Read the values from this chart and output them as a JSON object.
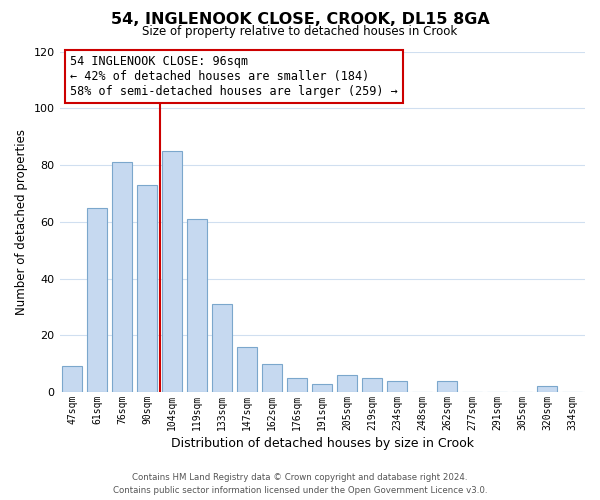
{
  "title": "54, INGLENOOK CLOSE, CROOK, DL15 8GA",
  "subtitle": "Size of property relative to detached houses in Crook",
  "xlabel": "Distribution of detached houses by size in Crook",
  "ylabel": "Number of detached properties",
  "categories": [
    "47sqm",
    "61sqm",
    "76sqm",
    "90sqm",
    "104sqm",
    "119sqm",
    "133sqm",
    "147sqm",
    "162sqm",
    "176sqm",
    "191sqm",
    "205sqm",
    "219sqm",
    "234sqm",
    "248sqm",
    "262sqm",
    "277sqm",
    "291sqm",
    "305sqm",
    "320sqm",
    "334sqm"
  ],
  "values": [
    9,
    65,
    81,
    73,
    85,
    61,
    31,
    16,
    10,
    5,
    3,
    6,
    5,
    4,
    0,
    4,
    0,
    0,
    0,
    2,
    0
  ],
  "bar_color": "#c6d9f0",
  "bar_edge_color": "#7ba7cc",
  "vline_x": 3.5,
  "vline_color": "#cc0000",
  "ylim": [
    0,
    120
  ],
  "yticks": [
    0,
    20,
    40,
    60,
    80,
    100,
    120
  ],
  "annotation_title": "54 INGLENOOK CLOSE: 96sqm",
  "annotation_line1": "← 42% of detached houses are smaller (184)",
  "annotation_line2": "58% of semi-detached houses are larger (259) →",
  "footer1": "Contains HM Land Registry data © Crown copyright and database right 2024.",
  "footer2": "Contains public sector information licensed under the Open Government Licence v3.0.",
  "background_color": "#ffffff",
  "grid_color": "#d0dff0"
}
